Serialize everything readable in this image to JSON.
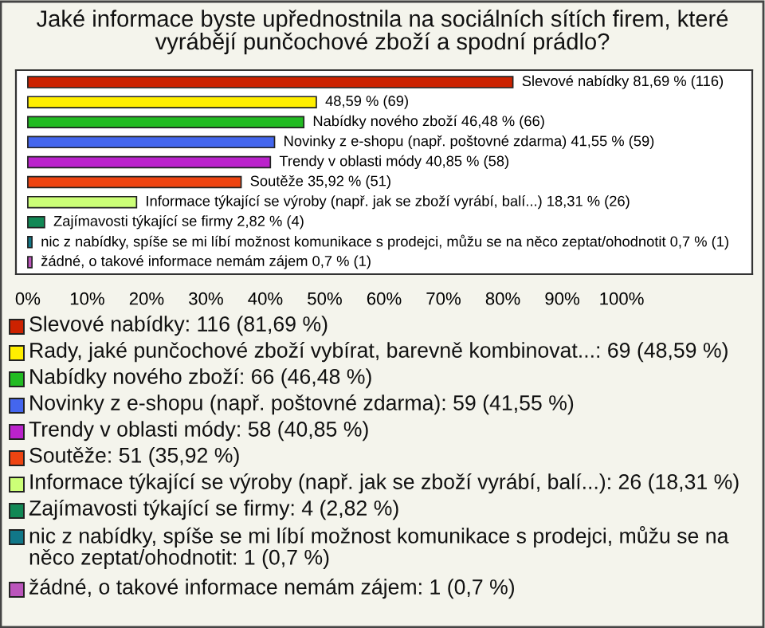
{
  "chart_data": {
    "type": "bar",
    "orientation": "horizontal",
    "title": "Jaké informace byste upřednostnila na sociálních sítích firem, které\nvyrábějí punčochové zboží a spodní prádlo?",
    "categories": [
      null,
      null,
      null,
      null,
      null,
      null,
      null,
      null,
      null,
      null
    ],
    "values": [
      81.69,
      48.59,
      46.48,
      41.55,
      40.85,
      35.92,
      18.31,
      2.82,
      0.7,
      0.7
    ],
    "colors": [
      "#cc2200",
      "#ffee00",
      "#22bb22",
      "#4466ee",
      "#bb22cc",
      "#ee4411",
      "#ccff77",
      "#118855",
      "#117788",
      "#bb55bb"
    ],
    "value_labels": [
      "Slevové nabídky 81,69 % (116)",
      "48,59 % (69)",
      "Nabídky nového zboží 46,48 % (66)",
      "Novinky z e-shopu (např. poštovné zdarma) 41,55 % (59)",
      "Trendy v oblasti módy 40,85 % (58)",
      "Soutěže 35,92 % (51)",
      "Informace týkající se výroby (např. jak se zboží vyrábí, balí...) 18,31 % (26)",
      "Zajímavosti týkající se firmy 2,82 % (4)",
      "nic z nabídky, spíše se mi líbí možnost komunikace s prodejci, můžu se na něco zeptat/ohodnotit 0,7 % (1)",
      "žádné, o takové informace nemám zájem 0,7 % (1)"
    ],
    "xlim": [
      -2,
      122
    ],
    "xticks": [
      {
        "value": 0,
        "label": "0%"
      },
      {
        "value": 10,
        "label": "10%"
      },
      {
        "value": 20,
        "label": "20%"
      },
      {
        "value": 30,
        "label": "30%"
      },
      {
        "value": 40,
        "label": "40%"
      },
      {
        "value": 50,
        "label": "50%"
      },
      {
        "value": 60,
        "label": "60%"
      },
      {
        "value": 70,
        "label": "70%"
      },
      {
        "value": 80,
        "label": "80%"
      },
      {
        "value": 90,
        "label": "90%"
      },
      {
        "value": 100,
        "label": "100%"
      }
    ],
    "grid": false,
    "annotations": [
      "Slevové nabídky: 116 (81,69 %)",
      "Rady, jaké punčochové zboží vybírat, barevně kombinovat...: 69 (48,59 %)",
      "Nabídky nového zboží: 66 (46,48 %)",
      "Novinky z e-shopu (např. poštovné zdarma): 59 (41,55 %)",
      "Trendy v oblasti módy: 58 (40,85 %)",
      "Soutěže: 51 (35,92 %)",
      "Informace týkající se výroby (např. jak se zboží vyrábí, balí...): 26 (18,31 %)",
      "Zajímavosti týkající se firmy: 4 (2,82 %)",
      "nic z nabídky, spíše se mi líbí možnost komunikace s prodejci, můžu se na\nněco zeptat/ohodnotit: 1 (0,7 %)",
      "žádné, o takové informace nemám zájem: 1 (0,7 %)"
    ]
  }
}
